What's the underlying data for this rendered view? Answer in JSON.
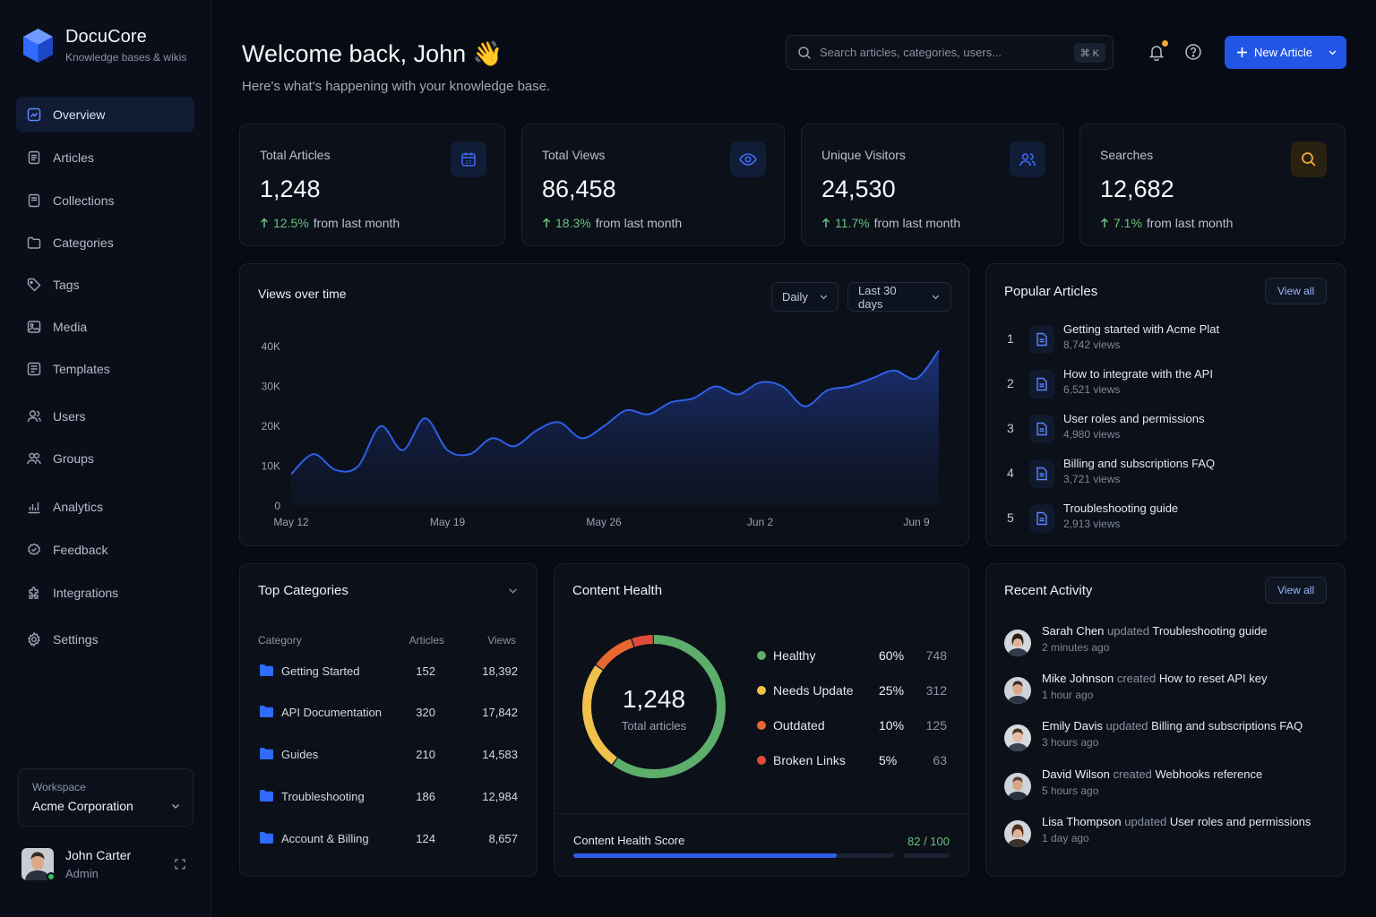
{
  "brand": {
    "title": "DocuCore",
    "subtitle": "Knowledge bases & wikis",
    "icon": "cube-logo-icon",
    "accent": "#2f6bff"
  },
  "nav": [
    {
      "label": "Overview",
      "icon": "overview-icon",
      "active": true
    },
    {
      "label": "Articles",
      "icon": "articles-icon"
    },
    {
      "label": "Collections",
      "icon": "collections-icon"
    },
    {
      "label": "Categories",
      "icon": "folder-icon"
    },
    {
      "label": "Tags",
      "icon": "tag-icon"
    },
    {
      "label": "Media",
      "icon": "image-icon"
    },
    {
      "label": "Templates",
      "icon": "templates-icon"
    },
    {
      "label": "Users",
      "icon": "user-icon"
    },
    {
      "label": "Groups",
      "icon": "group-icon"
    },
    {
      "label": "Analytics",
      "icon": "analytics-icon"
    },
    {
      "label": "Feedback",
      "icon": "feedback-icon"
    },
    {
      "label": "Integrations",
      "icon": "puzzle-icon"
    },
    {
      "label": "Settings",
      "icon": "gear-icon"
    }
  ],
  "workspace": {
    "label": "Workspace",
    "name": "Acme Corporation"
  },
  "user": {
    "name": "John Carter",
    "role": "Admin"
  },
  "header": {
    "title": "Welcome back, John 👋",
    "subtitle": "Here's what's happening with your knowledge base.",
    "search_placeholder": "Search articles, categories, users...",
    "search_shortcut": "⌘ K",
    "new_article": "New Article"
  },
  "stats": [
    {
      "label": "Total Articles",
      "value": "1,248",
      "delta": "12.5%",
      "delta_text": "from last month",
      "icon": "calendar-icon",
      "color": "#3b6cf6"
    },
    {
      "label": "Total Views",
      "value": "86,458",
      "delta": "18.3%",
      "delta_text": "from last month",
      "icon": "eye-icon",
      "color": "#3b6cf6"
    },
    {
      "label": "Unique Visitors",
      "value": "24,530",
      "delta": "11.7%",
      "delta_text": "from last month",
      "icon": "users-icon",
      "color": "#3b6cf6"
    },
    {
      "label": "Searches",
      "value": "12,682",
      "delta": "7.1%",
      "delta_text": "from last month",
      "icon": "search-icon",
      "color": "#f2a933"
    }
  ],
  "views_chart": {
    "title": "Views over time",
    "interval": "Daily",
    "range": "Last 30 days"
  },
  "chart_data": {
    "type": "area",
    "title": "Views over time",
    "xlabel": "",
    "ylabel": "",
    "x": [
      "May 12",
      "May 13",
      "May 14",
      "May 15",
      "May 16",
      "May 17",
      "May 18",
      "May 19",
      "May 20",
      "May 21",
      "May 22",
      "May 23",
      "May 24",
      "May 25",
      "May 26",
      "May 27",
      "May 28",
      "May 29",
      "May 30",
      "May 31",
      "Jun 1",
      "Jun 2",
      "Jun 3",
      "Jun 4",
      "Jun 5",
      "Jun 6",
      "Jun 7",
      "Jun 8",
      "Jun 9",
      "Jun 10"
    ],
    "series": [
      {
        "values": [
          8000,
          13000,
          9000,
          10000,
          20000,
          14000,
          22000,
          14000,
          13000,
          17000,
          15000,
          19000,
          21000,
          17000,
          20000,
          24000,
          23000,
          26000,
          27000,
          30000,
          28000,
          31000,
          30000,
          25000,
          29000,
          30000,
          32000,
          34000,
          32000,
          39000
        ]
      }
    ],
    "xticks": [
      "May 12",
      "May 19",
      "May 26",
      "Jun 2",
      "Jun 9"
    ],
    "yticks": [
      "0",
      "10K",
      "20K",
      "30K",
      "40K"
    ],
    "ylim": [
      0,
      40000
    ],
    "grid": false,
    "color": "#2f5fe8"
  },
  "popular": {
    "title": "Popular Articles",
    "view_all": "View all",
    "items": [
      {
        "rank": "1",
        "title": "Getting started with Acme Plat",
        "views": "8,742 views"
      },
      {
        "rank": "2",
        "title": "How to integrate with the API",
        "views": "6,521 views"
      },
      {
        "rank": "3",
        "title": "User roles and permissions",
        "views": "4,980 views"
      },
      {
        "rank": "4",
        "title": "Billing and subscriptions FAQ",
        "views": "3,721 views"
      },
      {
        "rank": "5",
        "title": "Troubleshooting guide",
        "views": "2,913 views"
      }
    ]
  },
  "categories": {
    "title": "Top Categories",
    "headers": {
      "category": "Category",
      "articles": "Articles",
      "views": "Views"
    },
    "rows": [
      {
        "name": "Getting Started",
        "articles": "152",
        "views": "18,392"
      },
      {
        "name": "API Documentation",
        "articles": "320",
        "views": "17,842"
      },
      {
        "name": "Guides",
        "articles": "210",
        "views": "14,583"
      },
      {
        "name": "Troubleshooting",
        "articles": "186",
        "views": "12,984"
      },
      {
        "name": "Account & Billing",
        "articles": "124",
        "views": "8,657"
      }
    ]
  },
  "health": {
    "title": "Content Health",
    "total": "1,248",
    "total_label": "Total articles",
    "items": [
      {
        "name": "Healthy",
        "pct": "60%",
        "value": 60,
        "count": "748",
        "color": "#5cae6a"
      },
      {
        "name": "Needs Update",
        "pct": "25%",
        "value": 25,
        "count": "312",
        "color": "#f0c14b"
      },
      {
        "name": "Outdated",
        "pct": "10%",
        "value": 10,
        "count": "125",
        "color": "#e8672f"
      },
      {
        "name": "Broken Links",
        "pct": "5%",
        "value": 5,
        "count": "63",
        "color": "#e04a3a"
      }
    ],
    "score_label": "Content Health Score",
    "score": "82 / 100",
    "score_value": 82
  },
  "activity": {
    "title": "Recent Activity",
    "view_all": "View all",
    "items": [
      {
        "name": "Sarah Chen",
        "verb": "updated",
        "target": "Troubleshooting guide",
        "time": "2 minutes ago"
      },
      {
        "name": "Mike Johnson",
        "verb": "created",
        "target": "How to reset API key",
        "time": "1 hour ago"
      },
      {
        "name": "Emily Davis",
        "verb": "updated",
        "target": "Billing and subscriptions FAQ",
        "time": "3 hours ago"
      },
      {
        "name": "David Wilson",
        "verb": "created",
        "target": "Webhooks reference",
        "time": "5 hours ago"
      },
      {
        "name": "Lisa Thompson",
        "verb": "updated",
        "target": "User roles and permissions",
        "time": "1 day ago"
      }
    ]
  }
}
